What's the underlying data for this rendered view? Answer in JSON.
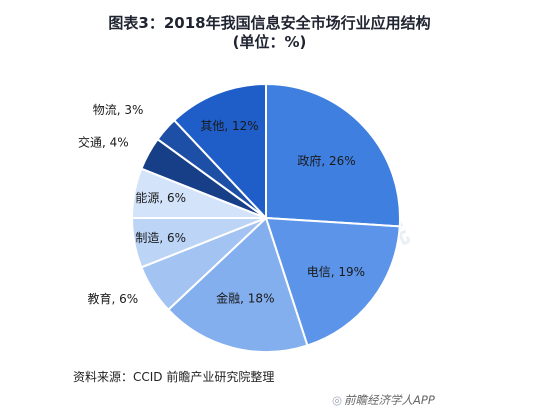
{
  "header": {
    "title_line1": "图表3：2018年我国信息安全市场行业应用结构",
    "title_line2": "(单位：%)"
  },
  "chart_data": {
    "type": "pie",
    "title": "图表3：2018年我国信息安全市场行业应用结构 (单位：%)",
    "unit": "%",
    "slices": [
      {
        "name": "政府",
        "value": 26,
        "label": "政府, 26%",
        "color": "#3f7fe0"
      },
      {
        "name": "电信",
        "value": 19,
        "label": "电信, 19%",
        "color": "#5b94e8"
      },
      {
        "name": "金融",
        "value": 18,
        "label": "金融, 18%",
        "color": "#84afee"
      },
      {
        "name": "教育",
        "value": 6,
        "label": "教育, 6%",
        "color": "#a3c3f3"
      },
      {
        "name": "制造",
        "value": 6,
        "label": "制造, 6%",
        "color": "#bcd4f6"
      },
      {
        "name": "能源",
        "value": 6,
        "label": "能源, 6%",
        "color": "#d3e3fa"
      },
      {
        "name": "交通",
        "value": 4,
        "label": "交通, 4%",
        "color": "#173f88"
      },
      {
        "name": "物流",
        "value": 3,
        "label": "物流, 3%",
        "color": "#1e4fa6"
      },
      {
        "name": "其他",
        "value": 12,
        "label": "其他, 12%",
        "color": "#1f5dc8"
      }
    ]
  },
  "footer": {
    "source": "资料来源：CCID 前瞻产业研究院整理",
    "brand": "前瞻经济学人APP"
  }
}
